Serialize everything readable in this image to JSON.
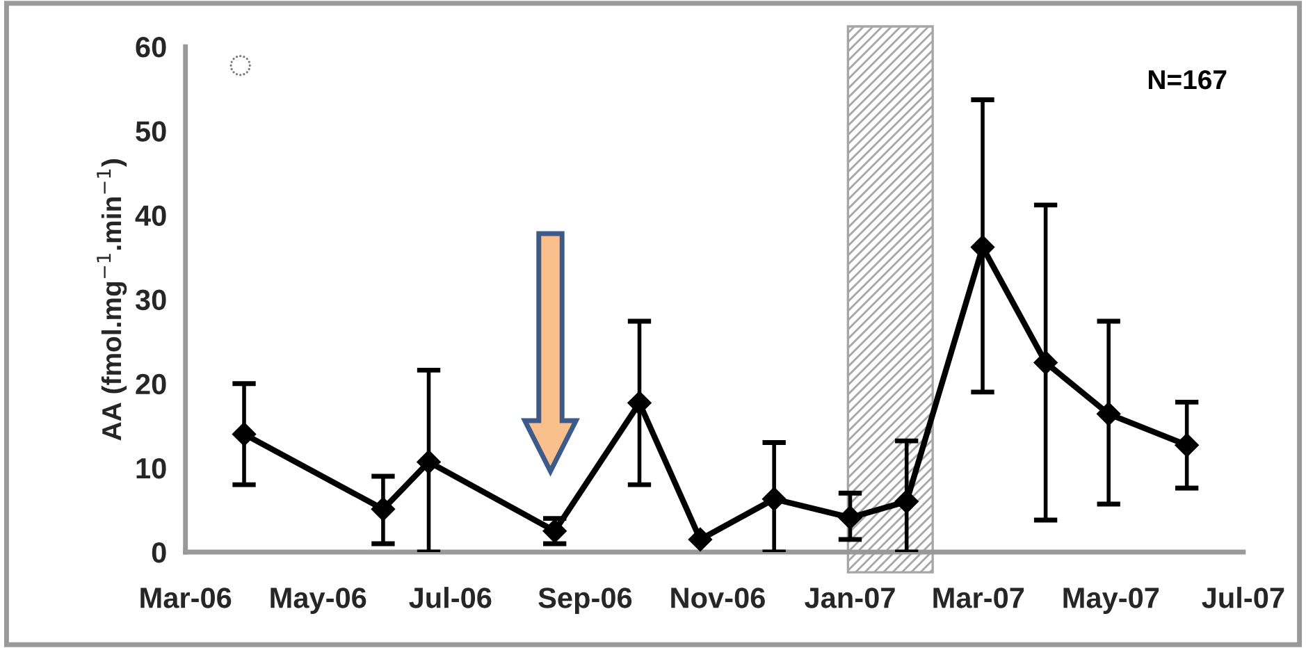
{
  "chart_data": {
    "type": "line",
    "ylabel": "AA (fmol.mg$^{−1}$.min$^{−1}$)",
    "x": [
      "2006-03-28",
      "2006-05-31",
      "2006-06-21",
      "2006-08-18",
      "2006-09-26",
      "2006-10-24",
      "2006-11-27",
      "2007-01-01",
      "2007-01-27",
      "2007-03-03",
      "2007-04-01",
      "2007-04-30",
      "2007-06-05"
    ],
    "series": [
      {
        "color": "#000000",
        "values": [
          14.0,
          5.1,
          10.7,
          2.5,
          17.7,
          1.5,
          6.3,
          4.1,
          6.0,
          36.2,
          22.5,
          16.4,
          12.7
        ],
        "errors": [
          [
            8,
            20
          ],
          [
            1,
            9
          ],
          [
            0,
            21.6
          ],
          [
            1,
            4
          ],
          [
            8,
            27.4
          ],
          null,
          [
            0,
            13
          ],
          [
            1.5,
            7
          ],
          [
            0,
            13.2
          ],
          [
            19,
            53.7
          ],
          [
            3.8,
            41.2
          ],
          [
            5.7,
            27.4
          ],
          [
            7.6,
            17.8
          ]
        ]
      }
    ],
    "marker": "diamond",
    "line_style": "solid",
    "xlim": [
      "2006-03-01",
      "2007-07-01"
    ],
    "xticks": [
      {
        "value": "2006-03-01",
        "label": "Mar-06"
      },
      {
        "value": "2006-05-01",
        "label": "May-06"
      },
      {
        "value": "2006-07-01",
        "label": "Jul-06"
      },
      {
        "value": "2006-09-01",
        "label": "Sep-06"
      },
      {
        "value": "2006-11-01",
        "label": "Nov-06"
      },
      {
        "value": "2007-01-01",
        "label": "Jan-07"
      },
      {
        "value": "2007-03-01",
        "label": "Mar-07"
      },
      {
        "value": "2007-05-01",
        "label": "May-07"
      },
      {
        "value": "2007-07-01",
        "label": "Jul-07"
      }
    ],
    "ylim": [
      0,
      60
    ],
    "yticks": [
      0,
      10,
      20,
      30,
      40,
      50,
      60
    ],
    "bands": [
      {
        "axis": "x",
        "from": "2006-12-31",
        "to": "2007-02-08",
        "color": "#a6a6a6"
      }
    ],
    "annotations": [
      "N=167",
      "◌"
    ],
    "grid": false,
    "legend": false
  }
}
